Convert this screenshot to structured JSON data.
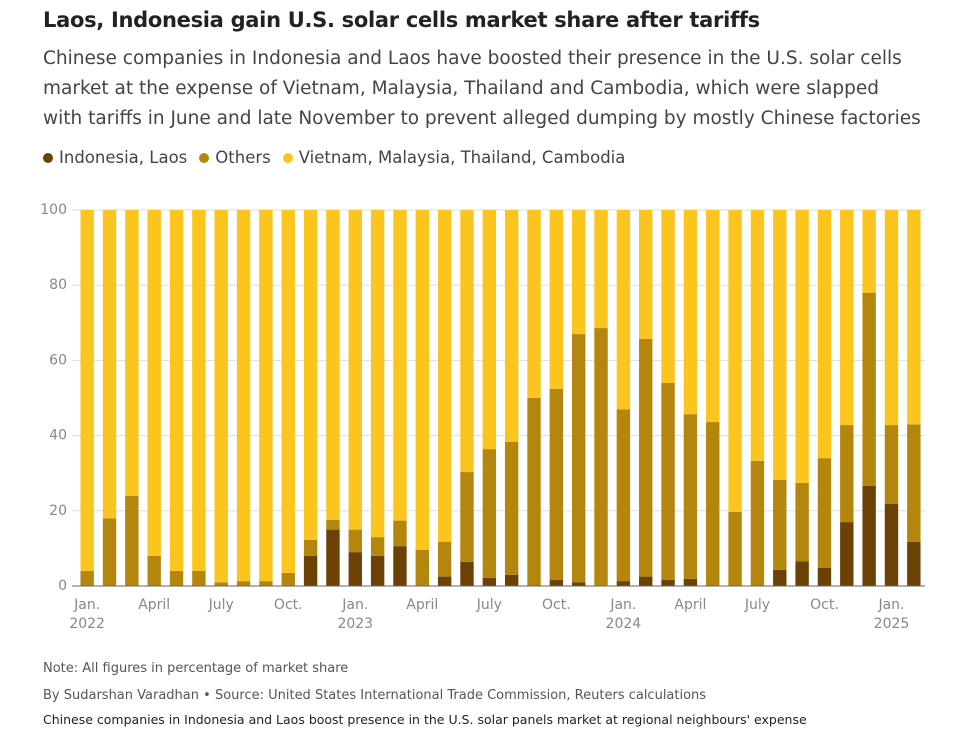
{
  "chart_data": {
    "type": "stacked_bar",
    "title": "Laos, Indonesia gain U.S. solar cells market share after tariffs",
    "subtitle": "Chinese companies in Indonesia and Laos have boosted their presence in the U.S. solar cells market at the expense of Vietnam, Malaysia, Thailand and Cambodia, which were slapped with tariffs in June and late November to prevent alleged dumping by mostly Chinese factories",
    "categories": [
      "Jan.\n2022",
      null,
      null,
      "April",
      null,
      null,
      "July",
      null,
      null,
      "Oct.",
      null,
      null,
      "Jan.\n2023",
      null,
      null,
      "April",
      null,
      null,
      "July",
      null,
      null,
      "Oct.",
      null,
      null,
      "Jan.\n2024",
      null,
      null,
      "April",
      null,
      null,
      "July",
      null,
      null,
      "Oct.",
      null,
      null,
      "Jan.\n2025",
      null
    ],
    "series": [
      {
        "name": "Indonesia, Laos",
        "color": "#6b4106",
        "values": [
          0,
          0,
          0,
          0,
          0,
          0,
          0,
          0,
          0,
          0,
          8,
          15,
          9,
          8,
          10.6,
          0,
          2.5,
          6.4,
          2.2,
          3,
          0,
          1.6,
          1,
          0,
          1.3,
          2.5,
          1.6,
          1.9,
          0,
          0,
          0,
          4.3,
          6.6,
          4.8,
          17,
          26.6,
          21.8,
          11.7
        ]
      },
      {
        "name": "Others",
        "color": "#b5860e",
        "values": [
          4,
          18,
          24,
          8,
          4,
          4,
          1,
          1.3,
          1.3,
          3.5,
          4.3,
          2.6,
          6,
          5,
          6.8,
          9.6,
          9.3,
          23.9,
          34.2,
          35.3,
          50,
          50.8,
          66,
          68.6,
          45.7,
          63.2,
          52.4,
          43.8,
          43.6,
          19.7,
          33.3,
          23.9,
          20.8,
          29.2,
          25.8,
          51.4,
          21,
          31.3
        ]
      },
      {
        "name": "Vietnam, Malaysia, Thailand, Cambodia",
        "color": "#fbc51e",
        "values": [
          96,
          82,
          76,
          92,
          96,
          96,
          99,
          98.7,
          98.7,
          96.5,
          87.7,
          82.4,
          85,
          87,
          82.6,
          90.4,
          88.2,
          69.7,
          63.6,
          61.7,
          50,
          47.6,
          33,
          31.4,
          53,
          34.3,
          46,
          54.3,
          56.4,
          80.3,
          66.7,
          71.8,
          72.6,
          66,
          57.2,
          22,
          57.2,
          57
        ]
      }
    ],
    "ylim": [
      0,
      100
    ],
    "yticks": [
      0,
      20,
      40,
      60,
      80,
      100
    ],
    "grid": true,
    "note": "Note: All figures in percentage of market share",
    "source": "By Sudarshan Varadhan • Source: United States International Trade Commission, Reuters calculations",
    "caption": "Chinese companies in Indonesia and Laos boost presence in the U.S. solar panels market at regional neighbours' expense"
  }
}
